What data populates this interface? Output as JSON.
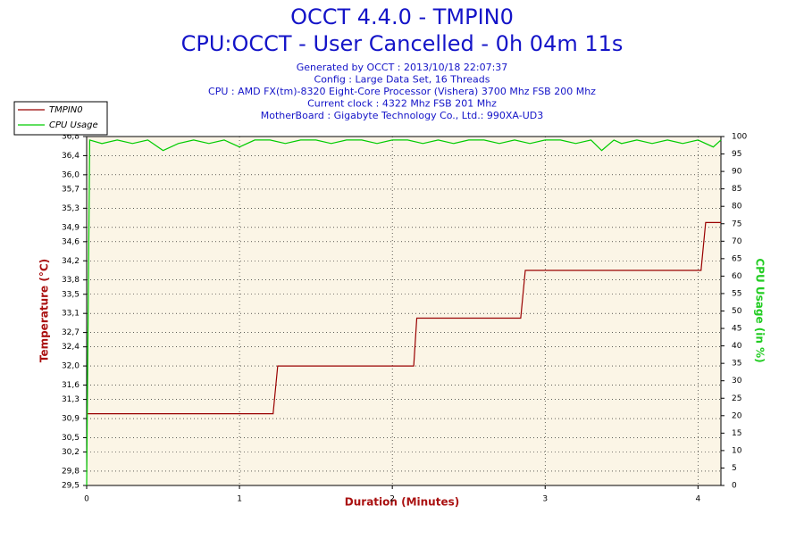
{
  "chart_data": {
    "type": "line",
    "title": "OCCT 4.4.0 - TMPIN0",
    "subtitle": "CPU:OCCT - User Cancelled - 0h 04m 11s",
    "info": [
      "Generated by OCCT : 2013/10/18 22:07:37",
      "Config : Large Data Set, 16 Threads",
      "CPU : AMD FX(tm)-8320 Eight-Core Processor (Vishera) 3700 Mhz FSB 200 Mhz",
      "Current clock : 4322 Mhz FSB 201 Mhz",
      "MotherBoard : Gigabyte Technology Co., Ltd.: 990XA-UD3"
    ],
    "xlabel": "Duration (Minutes)",
    "ylabel": "Temperature (°C)",
    "y2label": "CPU Usage (in %)",
    "xlim": [
      0,
      4.15
    ],
    "xticks": [
      0,
      1,
      2,
      3,
      4
    ],
    "ylim": [
      29.5,
      36.8
    ],
    "yticks": [
      {
        "value": 29.5,
        "label": "29,5"
      },
      {
        "value": 29.8,
        "label": "29,8"
      },
      {
        "value": 30.2,
        "label": "30,2"
      },
      {
        "value": 30.5,
        "label": "30,5"
      },
      {
        "value": 30.9,
        "label": "30,9"
      },
      {
        "value": 31.3,
        "label": "31,3"
      },
      {
        "value": 31.6,
        "label": "31,6"
      },
      {
        "value": 32.0,
        "label": "32,0"
      },
      {
        "value": 32.4,
        "label": "32,4"
      },
      {
        "value": 32.7,
        "label": "32,7"
      },
      {
        "value": 33.1,
        "label": "33,1"
      },
      {
        "value": 33.5,
        "label": "33,5"
      },
      {
        "value": 33.8,
        "label": "33,8"
      },
      {
        "value": 34.2,
        "label": "34,2"
      },
      {
        "value": 34.6,
        "label": "34,6"
      },
      {
        "value": 34.9,
        "label": "34,9"
      },
      {
        "value": 35.3,
        "label": "35,3"
      },
      {
        "value": 35.7,
        "label": "35,7"
      },
      {
        "value": 36.0,
        "label": "36,0"
      },
      {
        "value": 36.4,
        "label": "36,4"
      },
      {
        "value": 36.8,
        "label": "36,8"
      }
    ],
    "y2lim": [
      0,
      100
    ],
    "y2ticks": [
      0,
      5,
      10,
      15,
      20,
      25,
      30,
      35,
      40,
      45,
      50,
      55,
      60,
      65,
      70,
      75,
      80,
      85,
      90,
      95,
      100
    ],
    "grid": true,
    "legend": "upper left",
    "series": [
      {
        "name": "TMPIN0",
        "color": "#990000",
        "axis": "y",
        "x": [
          0,
          1.22,
          1.25,
          2.14,
          2.16,
          2.84,
          2.87,
          4.02,
          4.05,
          4.15
        ],
        "values": [
          31.0,
          31.0,
          32.0,
          32.0,
          33.0,
          33.0,
          34.0,
          34.0,
          35.0,
          35.0
        ]
      },
      {
        "name": "CPU Usage",
        "color": "#00cc00",
        "axis": "y2",
        "x": [
          0,
          0.02,
          0.1,
          0.2,
          0.3,
          0.4,
          0.5,
          0.6,
          0.7,
          0.8,
          0.9,
          1.0,
          1.1,
          1.2,
          1.3,
          1.4,
          1.5,
          1.6,
          1.7,
          1.8,
          1.9,
          2.0,
          2.1,
          2.2,
          2.3,
          2.4,
          2.5,
          2.6,
          2.7,
          2.8,
          2.9,
          3.0,
          3.1,
          3.2,
          3.3,
          3.37,
          3.45,
          3.5,
          3.6,
          3.7,
          3.8,
          3.9,
          4.0,
          4.1,
          4.15
        ],
        "values": [
          0,
          99,
          98,
          99,
          98,
          99,
          96,
          98,
          99,
          98,
          99,
          97,
          99,
          99,
          98,
          99,
          99,
          98,
          99,
          99,
          98,
          99,
          99,
          98,
          99,
          98,
          99,
          99,
          98,
          99,
          98,
          99,
          99,
          98,
          99,
          96,
          99,
          98,
          99,
          98,
          99,
          98,
          99,
          97,
          99
        ]
      }
    ]
  }
}
